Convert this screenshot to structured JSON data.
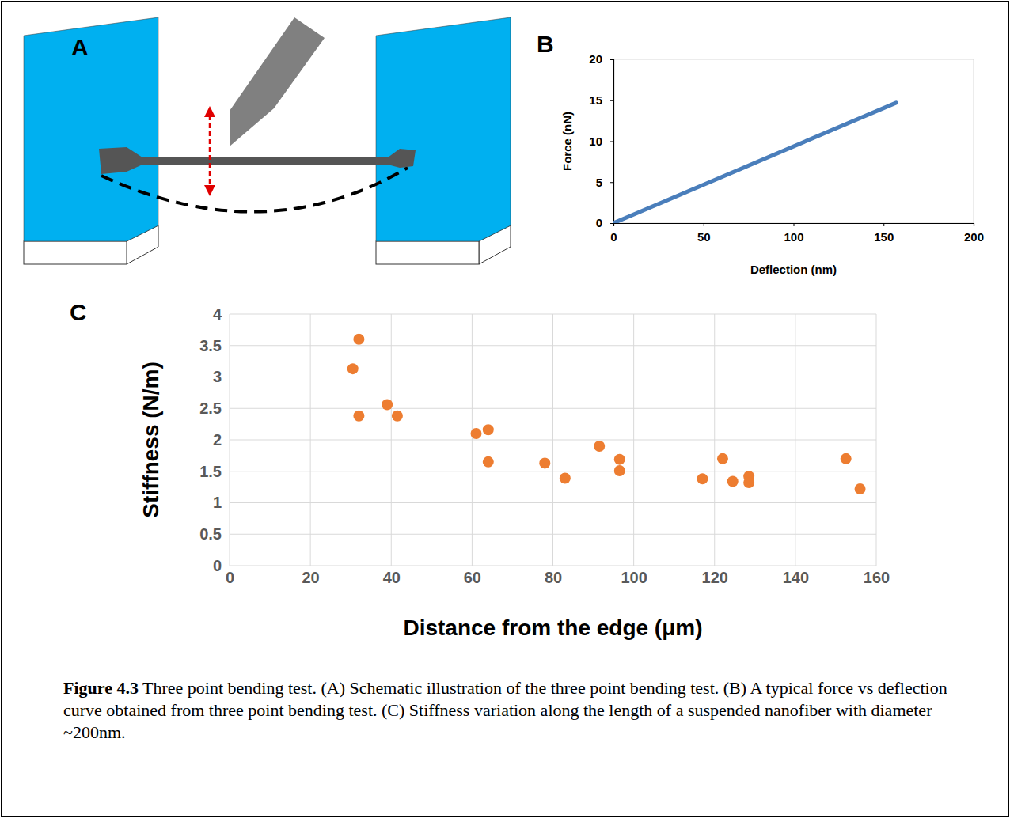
{
  "panels": [
    "A",
    "B",
    "C"
  ],
  "chart_data": [
    {
      "type": "line",
      "xlabel": "Deflection (nm)",
      "ylabel": "Force (nN)",
      "x": [
        0,
        157
      ],
      "series": [
        {
          "color": "#4a7ebb",
          "values": [
            0,
            14.7
          ]
        }
      ],
      "xlim": [
        0,
        200
      ],
      "xticks": [
        0,
        50,
        100,
        150,
        200
      ],
      "ylim": [
        0,
        20
      ],
      "yticks": [
        0,
        5,
        10,
        15,
        20
      ],
      "grid": false
    },
    {
      "type": "scatter",
      "xlabel": "Distance from the edge (μm)",
      "ylabel": "Stiffness (N/m)",
      "x": [
        30.5,
        32,
        32,
        39,
        41.5,
        61,
        64,
        64,
        78,
        83,
        91.5,
        96.5,
        96.5,
        117,
        122,
        124.5,
        128.5,
        128.5,
        152.5,
        156
      ],
      "series": [
        {
          "color": "#ed7d31",
          "marker": "circle",
          "values": [
            3.13,
            3.6,
            2.38,
            2.56,
            2.38,
            2.1,
            2.16,
            1.65,
            1.63,
            1.39,
            1.9,
            1.69,
            1.51,
            1.38,
            1.7,
            1.34,
            1.42,
            1.32,
            1.7,
            1.22
          ]
        }
      ],
      "xlim": [
        0,
        160
      ],
      "xticks": [
        0,
        20,
        40,
        60,
        80,
        100,
        120,
        140,
        160
      ],
      "ylim": [
        0,
        4
      ],
      "yticks": [
        0,
        0.5,
        1,
        1.5,
        2,
        2.5,
        3,
        3.5,
        4
      ],
      "grid": true
    }
  ],
  "caption": {
    "label": "Figure 4.3",
    "text": "Three point bending test. (A) Schematic illustration of the three point bending test. (B) A typical force vs deflection curve obtained from three point bending test. (C) Stiffness variation along the length of a suspended nanofiber with diameter ~200nm."
  }
}
